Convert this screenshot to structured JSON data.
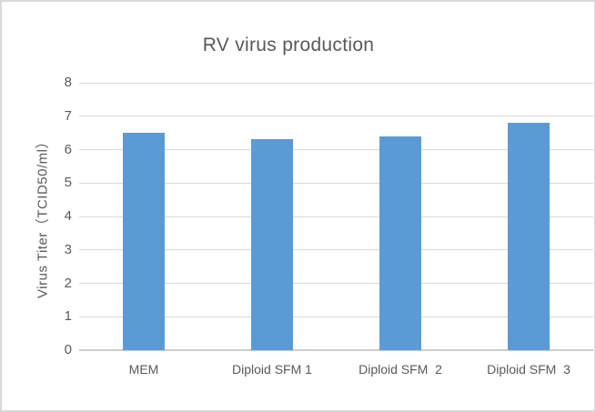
{
  "window": {
    "background": "#ffffff",
    "frame_border_color": "#d9d9d9"
  },
  "chart_data": {
    "type": "bar",
    "title": "RV virus production",
    "categories": [
      "MEM",
      "Diploid SFM 1",
      "Diploid SFM  2",
      "Diploid SFM  3"
    ],
    "values": [
      6.5,
      6.3,
      6.4,
      6.8
    ],
    "xlabel": "",
    "ylabel": "Virus Titer（TCID50/ml）",
    "ylim": [
      0,
      8
    ],
    "ytick_step": 1,
    "ytick_labels": [
      "0",
      "1",
      "2",
      "3",
      "4",
      "5",
      "6",
      "7",
      "8"
    ],
    "grid": "horizontal",
    "legend": "none",
    "bar_color": "#5b9bd5",
    "text_color": "#595959",
    "grid_color": "#d9d9d9",
    "axis_line_color": "#cccccc"
  }
}
